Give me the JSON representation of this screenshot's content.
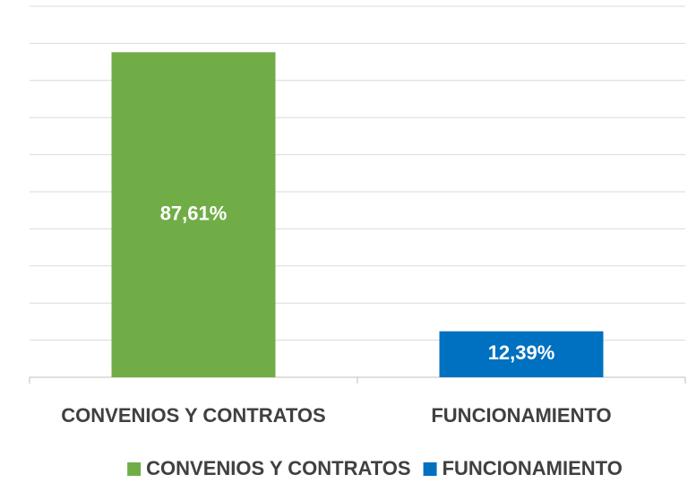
{
  "chart_data": {
    "type": "bar",
    "categories": [
      "CONVENIOS Y CONTRATOS",
      "FUNCIONAMIENTO"
    ],
    "values": [
      87.61,
      12.39
    ],
    "value_labels": [
      "87,61%",
      "12,39%"
    ],
    "colors": [
      "#70ad47",
      "#0070c0"
    ],
    "ylim": [
      0,
      100
    ],
    "yticks": [
      0,
      10,
      20,
      30,
      40,
      50,
      60,
      70,
      80,
      90,
      100
    ],
    "grid": true,
    "legend": "bottom"
  }
}
